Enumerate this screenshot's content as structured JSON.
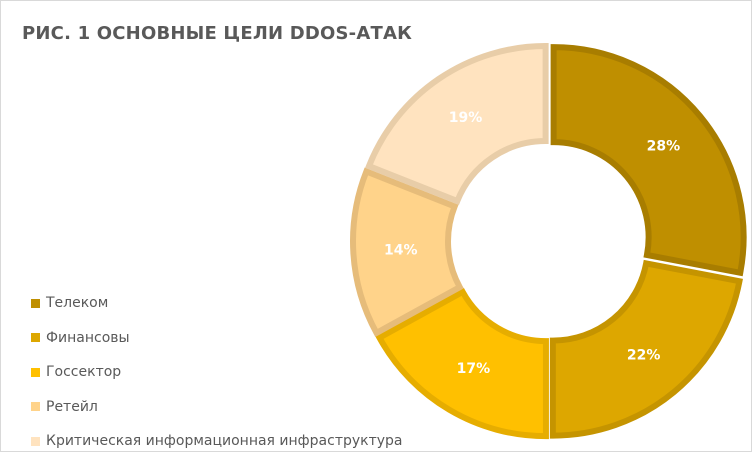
{
  "chart_data": {
    "type": "pie",
    "subtype": "doughnut",
    "title": "РИС. 1 ОСНОВНЫЕ ЦЕЛИ DDOS-АТАК",
    "categories": [
      "Телеком",
      "Финансовы",
      "Госсектор",
      "Ретейл",
      "Критическая информационная инфраструктура"
    ],
    "values": [
      28,
      22,
      17,
      14,
      19
    ],
    "value_labels": [
      "28%",
      "22%",
      "17%",
      "14%",
      "19%"
    ],
    "colors": [
      "#BF8F00",
      "#DDA700",
      "#FFC000",
      "#FFD38A",
      "#FFE3BF"
    ],
    "border_colors": [
      "#A87D00",
      "#C59400",
      "#E6AD00",
      "#E6BC7A",
      "#E8CDA8"
    ],
    "legend_position": "bottom-left",
    "start_angle_deg": 0,
    "direction": "clockwise"
  }
}
